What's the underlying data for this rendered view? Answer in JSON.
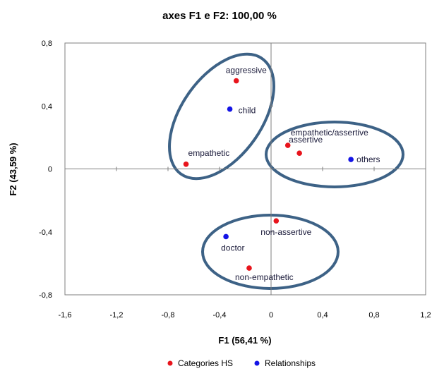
{
  "chart_data": {
    "type": "scatter",
    "title": "axes F1 e F2: 100,00 %",
    "xlabel": "F1 (56,41 %)",
    "ylabel": "F2 (43,59 %)",
    "xlim": [
      -1.6,
      1.2
    ],
    "ylim": [
      -0.8,
      0.8
    ],
    "x_ticks": [
      -1.6,
      -1.2,
      -0.8,
      -0.4,
      0,
      0.4,
      0.8,
      1.2
    ],
    "x_tick_labels": [
      "-1,6",
      "-1,2",
      "-0,8",
      "-0,4",
      "0",
      "0,4",
      "0,8",
      "1,2"
    ],
    "y_ticks": [
      0.8,
      0.4,
      0,
      -0.4,
      -0.8
    ],
    "y_tick_labels": [
      "0,8",
      "0,4",
      "0",
      "-0,4",
      "-0,8"
    ],
    "grid": false,
    "legend_position": "bottom",
    "series": [
      {
        "name": "Categories HS",
        "color": "#e8141c",
        "points": [
          {
            "label": "aggressive",
            "x": -0.27,
            "y": 0.56
          },
          {
            "label": "empathetic",
            "x": -0.66,
            "y": 0.03
          },
          {
            "label": "empathetic/assertive",
            "x": 0.13,
            "y": 0.15
          },
          {
            "label": "assertive",
            "x": 0.22,
            "y": 0.1
          },
          {
            "label": "non-assertive",
            "x": 0.04,
            "y": -0.33
          },
          {
            "label": "non-empathetic",
            "x": -0.17,
            "y": -0.63
          }
        ]
      },
      {
        "name": "Relationships",
        "color": "#1414e6",
        "points": [
          {
            "label": "child",
            "x": -0.32,
            "y": 0.38
          },
          {
            "label": "others",
            "x": 0.62,
            "y": 0.06
          },
          {
            "label": "doctor",
            "x": -0.35,
            "y": -0.43
          }
        ]
      }
    ],
    "ellipse_color": "#3d6286"
  }
}
